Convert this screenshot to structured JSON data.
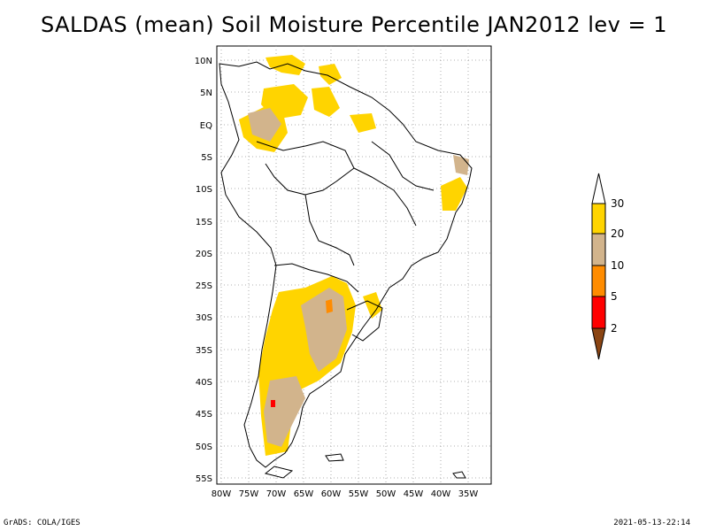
{
  "title": "SALDAS (mean) Soil Moisture Percentile JAN2012 lev = 1",
  "axes": {
    "lat_labels": [
      "10N",
      "5N",
      "EQ",
      "5S",
      "10S",
      "15S",
      "20S",
      "25S",
      "30S",
      "35S",
      "40S",
      "45S",
      "50S",
      "55S"
    ],
    "lon_labels": [
      "80W",
      "75W",
      "70W",
      "65W",
      "60W",
      "55W",
      "50W",
      "45W",
      "40W",
      "35W"
    ]
  },
  "legend": {
    "labels": [
      "30",
      "20",
      "10",
      "5",
      "2"
    ],
    "colors": {
      "above30": "#ffffff",
      "20to30": "#ffd400",
      "10to20": "#d2b48c",
      "5to10": "#ff8c00",
      "2to5": "#ff0000",
      "below2": "#8b4513"
    }
  },
  "footer": {
    "left": "GrADS: COLA/IGES",
    "right": "2021-05-13-22:14"
  }
}
